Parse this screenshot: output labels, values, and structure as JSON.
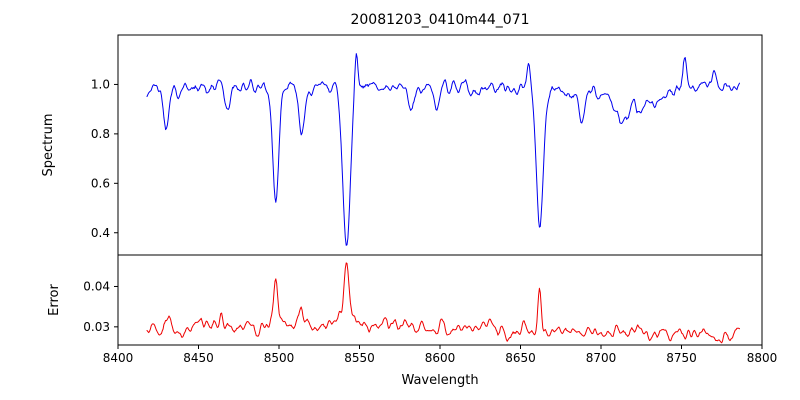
{
  "chart_data": {
    "type": "line",
    "title": "20081203_0410m44_071",
    "xlabel": "Wavelength",
    "xlim": [
      8400,
      8800
    ],
    "x_ticks": [
      8400,
      8450,
      8500,
      8550,
      8600,
      8650,
      8700,
      8750,
      8800
    ],
    "grid": false,
    "legend": "none",
    "panels": [
      {
        "name": "spectrum",
        "ylabel": "Spectrum",
        "ylim": [
          0.31,
          1.2
        ],
        "yticks": [
          0.4,
          0.6,
          0.8,
          1.0
        ],
        "tick_decimals": 1,
        "color": "#0000ee",
        "line": {
          "x_start": 8418,
          "x_end": 8786,
          "n_points": 700,
          "seed": 42,
          "noise_amp": 0.016,
          "wander_amp": 0.05,
          "wander_passes": 4,
          "baseline": [
            [
              8418,
              0.975
            ],
            [
              8450,
              0.99
            ],
            [
              8500,
              0.99
            ],
            [
              8550,
              0.985
            ],
            [
              8600,
              0.985
            ],
            [
              8620,
              0.975
            ],
            [
              8650,
              0.99
            ],
            [
              8700,
              0.955
            ],
            [
              8715,
              0.915
            ],
            [
              8730,
              0.93
            ],
            [
              8745,
              0.965
            ],
            [
              8760,
              0.99
            ],
            [
              8786,
              0.995
            ]
          ],
          "absorption_lines": [
            {
              "center": 8430,
              "depth": 0.16,
              "width": 1.6
            },
            {
              "center": 8468,
              "depth": 0.1,
              "width": 1.5
            },
            {
              "center": 8498,
              "depth": 0.46,
              "width": 1.9
            },
            {
              "center": 8514,
              "depth": 0.2,
              "width": 1.7
            },
            {
              "center": 8542,
              "depth": 0.62,
              "width": 2.4
            },
            {
              "center": 8582,
              "depth": 0.1,
              "width": 1.5
            },
            {
              "center": 8598,
              "depth": 0.08,
              "width": 1.4
            },
            {
              "center": 8662,
              "depth": 0.55,
              "width": 2.1
            },
            {
              "center": 8688,
              "depth": 0.12,
              "width": 1.6
            },
            {
              "center": 8713,
              "depth": 0.08,
              "width": 3.0
            }
          ],
          "emission_spikes": [
            {
              "center": 8548,
              "height": 0.17,
              "width": 1.0
            },
            {
              "center": 8655,
              "height": 0.09,
              "width": 1.2
            },
            {
              "center": 8752,
              "height": 0.12,
              "width": 1.3
            },
            {
              "center": 8770,
              "height": 0.07,
              "width": 1.0
            }
          ]
        }
      },
      {
        "name": "error",
        "ylabel": "Error",
        "ylim": [
          0.0255,
          0.0478
        ],
        "yticks": [
          0.03,
          0.04
        ],
        "tick_decimals": 2,
        "color": "#ee0000",
        "line": {
          "x_start": 8418,
          "x_end": 8786,
          "n_points": 700,
          "seed": 7,
          "noise_amp": 0.0007,
          "wander_amp": 0.004,
          "wander_passes": 4,
          "baseline": [
            [
              8418,
              0.0296
            ],
            [
              8460,
              0.0299
            ],
            [
              8500,
              0.0302
            ],
            [
              8530,
              0.0306
            ],
            [
              8545,
              0.0311
            ],
            [
              8560,
              0.0304
            ],
            [
              8600,
              0.0296
            ],
            [
              8650,
              0.0294
            ],
            [
              8700,
              0.0287
            ],
            [
              8750,
              0.0284
            ],
            [
              8786,
              0.0281
            ]
          ],
          "absorption_lines": [],
          "emission_spikes": [
            {
              "center": 8432,
              "height": 0.002,
              "width": 1.2
            },
            {
              "center": 8464,
              "height": 0.0035,
              "width": 1.0
            },
            {
              "center": 8498,
              "height": 0.0105,
              "width": 1.2
            },
            {
              "center": 8514,
              "height": 0.003,
              "width": 1.0
            },
            {
              "center": 8542,
              "height": 0.0155,
              "width": 1.6
            },
            {
              "center": 8600,
              "height": 0.002,
              "width": 1.0
            },
            {
              "center": 8662,
              "height": 0.0115,
              "width": 1.1
            }
          ]
        }
      }
    ]
  }
}
